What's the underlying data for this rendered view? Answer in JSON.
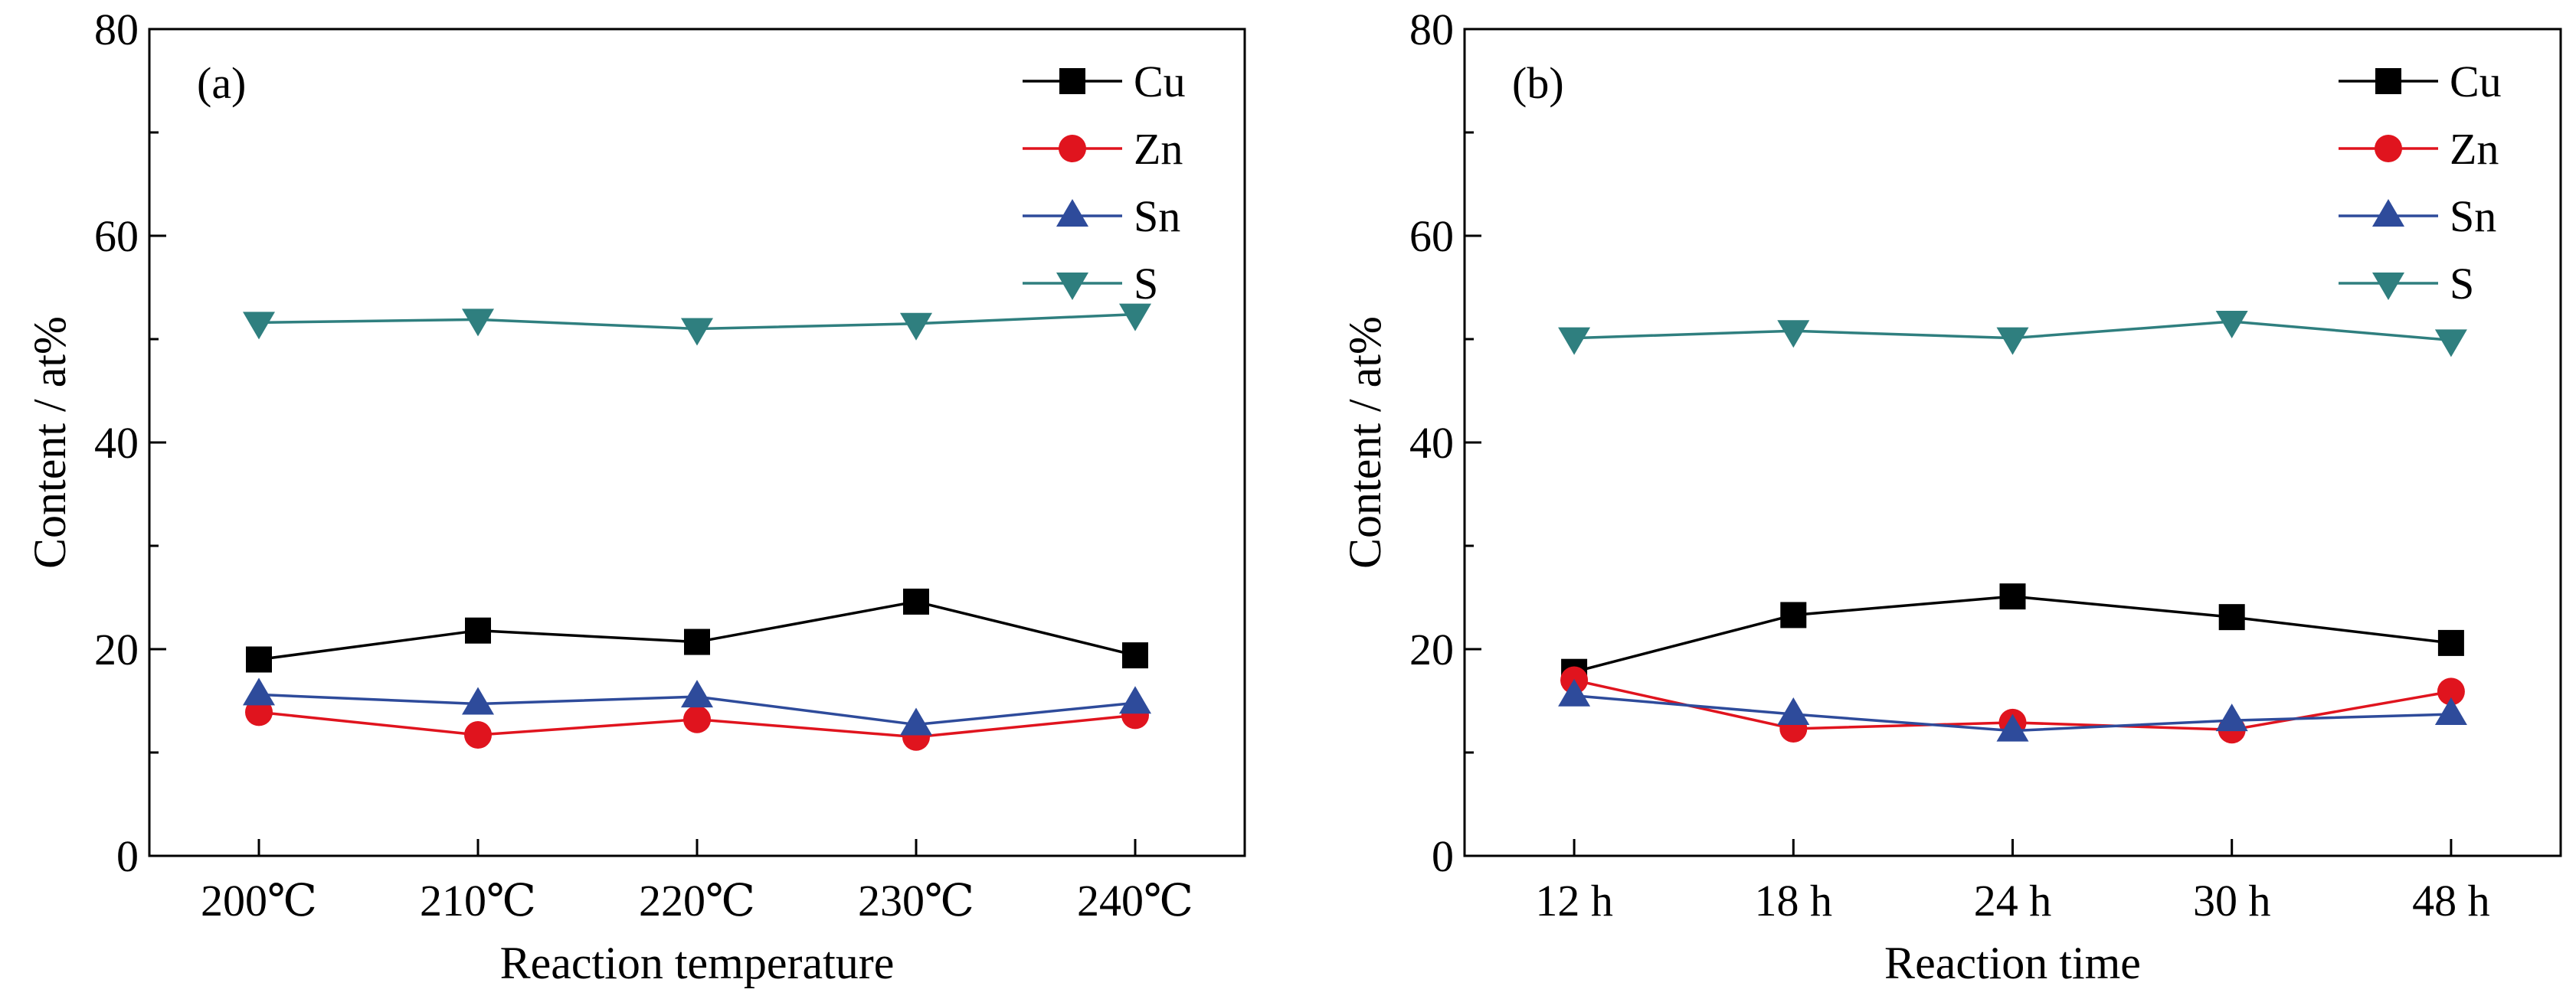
{
  "chart_data": [
    {
      "type": "line",
      "panel_label": "(a)",
      "xlabel": "Reaction temperature",
      "ylabel": "Content / at%",
      "categories": [
        "200℃",
        "210℃",
        "220℃",
        "230℃",
        "240℃"
      ],
      "ylim": [
        0,
        80
      ],
      "yticks": [
        0,
        20,
        40,
        60,
        80
      ],
      "legend_position": "top-right",
      "grid": false,
      "series": [
        {
          "name": "Cu",
          "marker": "square",
          "color": "#000000",
          "values": [
            19.0,
            21.8,
            20.7,
            24.6,
            19.4
          ]
        },
        {
          "name": "Zn",
          "marker": "circle",
          "color": "#e0141e",
          "values": [
            13.9,
            11.7,
            13.2,
            11.5,
            13.6
          ]
        },
        {
          "name": "Sn",
          "marker": "triangle-up",
          "color": "#2e4b9b",
          "values": [
            15.6,
            14.7,
            15.4,
            12.7,
            14.8
          ]
        },
        {
          "name": "S",
          "marker": "triangle-down",
          "color": "#2f7f7f",
          "values": [
            51.6,
            51.9,
            51.0,
            51.5,
            52.4
          ]
        }
      ]
    },
    {
      "type": "line",
      "panel_label": "(b)",
      "xlabel": "Reaction time",
      "ylabel": "Content / at%",
      "categories": [
        "12 h",
        "18 h",
        "24 h",
        "30 h",
        "48 h"
      ],
      "ylim": [
        0,
        80
      ],
      "yticks": [
        0,
        20,
        40,
        60,
        80
      ],
      "legend_position": "top-right",
      "grid": false,
      "series": [
        {
          "name": "Cu",
          "marker": "square",
          "color": "#000000",
          "values": [
            17.8,
            23.3,
            25.1,
            23.1,
            20.6
          ]
        },
        {
          "name": "Zn",
          "marker": "circle",
          "color": "#e0141e",
          "values": [
            17.0,
            12.3,
            12.9,
            12.2,
            15.9
          ]
        },
        {
          "name": "Sn",
          "marker": "triangle-up",
          "color": "#2e4b9b",
          "values": [
            15.5,
            13.7,
            12.1,
            13.1,
            13.7
          ]
        },
        {
          "name": "S",
          "marker": "triangle-down",
          "color": "#2f7f7f",
          "values": [
            50.1,
            50.8,
            50.1,
            51.7,
            49.9
          ]
        }
      ]
    }
  ]
}
